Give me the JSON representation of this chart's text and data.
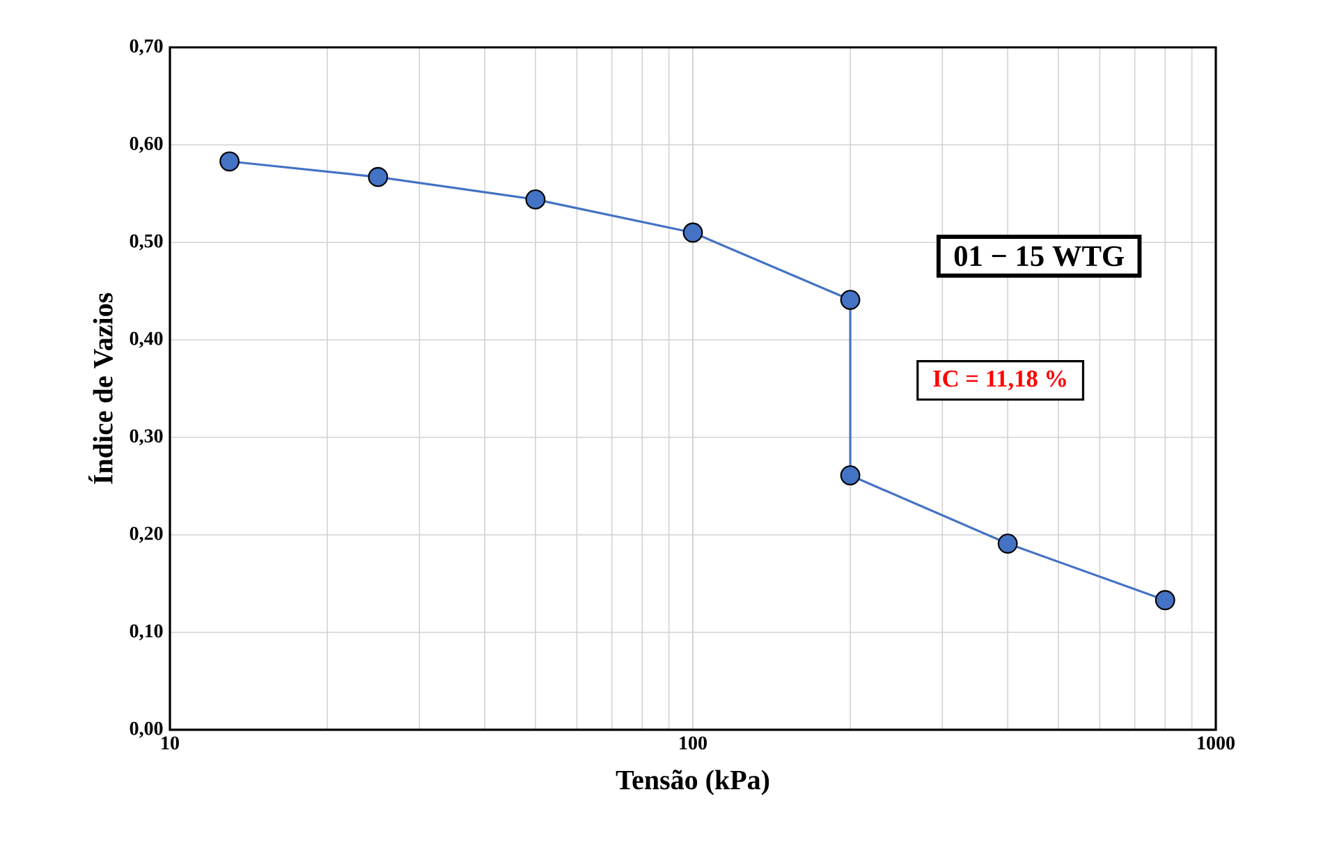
{
  "chart_data": {
    "type": "line",
    "xlabel": "Tensão  (kPa)",
    "ylabel": "Índice de Vazios",
    "x": [
      13,
      25,
      50,
      100,
      200,
      200,
      400,
      800
    ],
    "series": [
      {
        "color": "#4472c4",
        "values": [
          0.583,
          0.567,
          0.544,
          0.51,
          0.441,
          0.261,
          0.191,
          0.133
        ]
      }
    ],
    "log": "x",
    "xlim": [
      10,
      1000
    ],
    "xticks": [
      10,
      100,
      1000
    ],
    "ylim": [
      0,
      0.7
    ],
    "yticks": [
      {
        "value": 0,
        "label": "0,00"
      },
      {
        "value": 0.1,
        "label": "0,10"
      },
      {
        "value": 0.2,
        "label": "0,20"
      },
      {
        "value": 0.3,
        "label": "0,30"
      },
      {
        "value": 0.4,
        "label": "0,40"
      },
      {
        "value": 0.5,
        "label": "0,50"
      },
      {
        "value": 0.6,
        "label": "0,60"
      },
      {
        "value": 0.7,
        "label": "0,70"
      }
    ],
    "grid": true,
    "marker": "circle",
    "line_style": "solid",
    "annotations": [
      "01 − 15 WTG",
      "IC = 11,18 %"
    ]
  }
}
